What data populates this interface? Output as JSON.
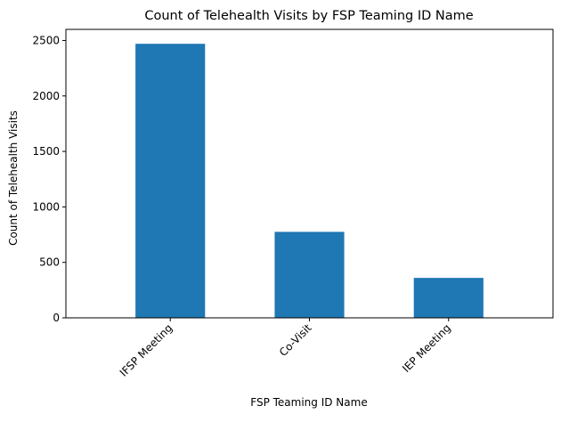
{
  "chart_data": {
    "type": "bar",
    "title": "Count of Telehealth Visits by FSP Teaming ID Name",
    "xlabel": "FSP Teaming ID Name",
    "ylabel": "Count of Telehealth Visits",
    "categories": [
      "IFSP Meeting",
      "Co-Visit",
      "IEP Meeting"
    ],
    "values": [
      2470,
      775,
      360
    ],
    "ylim": [
      0,
      2600
    ],
    "yticks": [
      0,
      500,
      1000,
      1500,
      2000,
      2500
    ],
    "bar_color": "#1f77b4",
    "grid": false,
    "legend": "none"
  }
}
